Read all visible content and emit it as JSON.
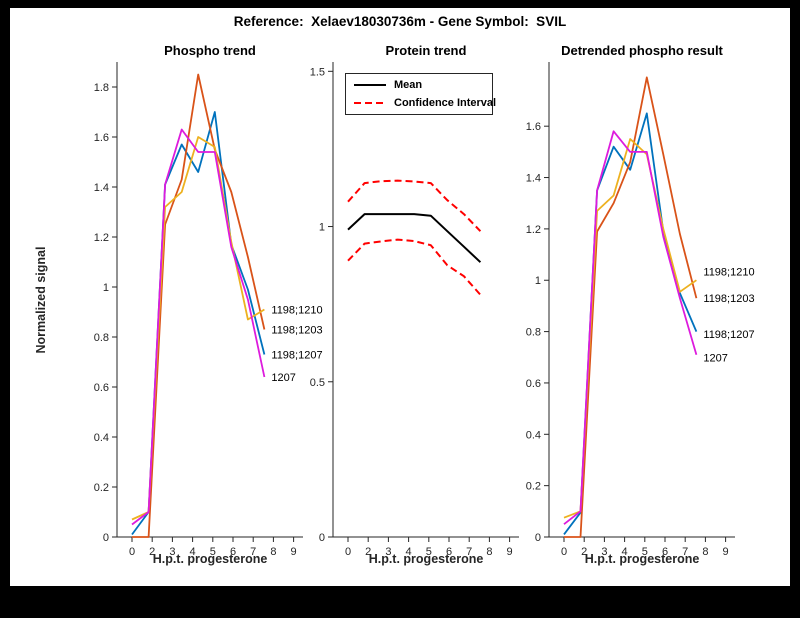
{
  "figure": {
    "title": "Reference:  Xelaev18030736m - Gene Symbol:  SVIL",
    "background": "#ffffff",
    "frame_color": "#000000",
    "axis_color": "#262626",
    "tick_label_color": "#262626"
  },
  "chart_data": [
    {
      "type": "line",
      "title": "Phospho trend",
      "xlabel": "H.p.t. progesterone",
      "ylabel": "Normalized signal",
      "x_tick_labels": [
        "0",
        "2",
        "3",
        "4",
        "5",
        "6",
        "7",
        "8",
        "9"
      ],
      "y_ticks": [
        0,
        0.2,
        0.4,
        0.6,
        0.8,
        1,
        1.2,
        1.4,
        1.6,
        1.8
      ],
      "y_tick_labels": [
        "0",
        "0.2",
        "0.4",
        "0.6",
        "0.8",
        "1",
        "1.2",
        "1.4",
        "1.6",
        "1.8"
      ],
      "ylim": [
        0,
        1.9
      ],
      "grid": false,
      "series": [
        {
          "name": "1198;1207",
          "color": "#0072BD",
          "dash": "none",
          "width": 1.8,
          "values": [
            0.01,
            0.1,
            1.41,
            1.57,
            1.46,
            1.7,
            1.17,
            0.99,
            0.73
          ]
        },
        {
          "name": "1198;1203",
          "color": "#D95319",
          "dash": "none",
          "width": 1.8,
          "values": [
            0.0,
            0.0,
            1.25,
            1.43,
            1.85,
            1.55,
            1.38,
            1.12,
            0.83
          ]
        },
        {
          "name": "1198;1210",
          "color": "#EDB120",
          "dash": "none",
          "width": 1.8,
          "values": [
            0.07,
            0.1,
            1.32,
            1.38,
            1.6,
            1.56,
            1.18,
            0.87,
            0.91
          ]
        },
        {
          "name": "1207",
          "color": "#DD1BDD",
          "dash": "none",
          "width": 1.8,
          "values": [
            0.05,
            0.1,
            1.41,
            1.63,
            1.54,
            1.54,
            1.16,
            0.95,
            0.64
          ]
        }
      ],
      "end_labels": [
        {
          "text": "1198;1210",
          "value": 0.91
        },
        {
          "text": "1198;1203",
          "value": 0.83
        },
        {
          "text": "1198;1207",
          "value": 0.73
        },
        {
          "text": "1207",
          "value": 0.64
        }
      ]
    },
    {
      "type": "line",
      "title": "Protein trend",
      "xlabel": "H.p.t. progesterone",
      "ylabel": "",
      "x_tick_labels": [
        "0",
        "2",
        "3",
        "4",
        "5",
        "6",
        "7",
        "8",
        "9"
      ],
      "y_ticks": [
        0,
        0.5,
        1,
        1.5
      ],
      "y_tick_labels": [
        "0",
        "0.5",
        "1",
        "1.5"
      ],
      "ylim": [
        0,
        1.53
      ],
      "grid": false,
      "legend": {
        "position": "top-left",
        "entries": [
          {
            "label": "Mean",
            "color": "#000000",
            "dash": "none"
          },
          {
            "label": "Confidence Interval",
            "color": "#FF0000",
            "dash": "7 4"
          }
        ]
      },
      "series": [
        {
          "name": "Mean",
          "color": "#000000",
          "dash": "none",
          "width": 2,
          "values": [
            0.99,
            1.04,
            1.04,
            1.04,
            1.04,
            1.035,
            0.985,
            0.935,
            0.885
          ]
        },
        {
          "name": "Confidence Interval upper",
          "color": "#FF0000",
          "dash": "7 4",
          "width": 2,
          "values": [
            1.08,
            1.14,
            1.146,
            1.148,
            1.145,
            1.14,
            1.085,
            1.04,
            0.985
          ]
        },
        {
          "name": "Confidence Interval lower",
          "color": "#FF0000",
          "dash": "7 4",
          "width": 2,
          "values": [
            0.89,
            0.945,
            0.952,
            0.958,
            0.953,
            0.94,
            0.875,
            0.84,
            0.78
          ]
        }
      ],
      "end_labels": []
    },
    {
      "type": "line",
      "title": "Detrended phospho result",
      "xlabel": "H.p.t. progesterone",
      "ylabel": "",
      "x_tick_labels": [
        "0",
        "2",
        "3",
        "4",
        "5",
        "6",
        "7",
        "8",
        "9"
      ],
      "y_ticks": [
        0,
        0.2,
        0.4,
        0.6,
        0.8,
        1,
        1.2,
        1.4,
        1.6
      ],
      "y_tick_labels": [
        "0",
        "0.2",
        "0.4",
        "0.6",
        "0.8",
        "1",
        "1.2",
        "1.4",
        "1.6"
      ],
      "ylim": [
        0,
        1.85
      ],
      "grid": false,
      "series": [
        {
          "name": "1198;1207",
          "color": "#0072BD",
          "dash": "none",
          "width": 1.8,
          "values": [
            0.01,
            0.095,
            1.35,
            1.52,
            1.43,
            1.65,
            1.19,
            0.95,
            0.8
          ]
        },
        {
          "name": "1198;1203",
          "color": "#D95319",
          "dash": "none",
          "width": 1.8,
          "values": [
            0.0,
            0.0,
            1.19,
            1.3,
            1.46,
            1.79,
            1.49,
            1.18,
            0.93
          ]
        },
        {
          "name": "1198;1210",
          "color": "#EDB120",
          "dash": "none",
          "width": 1.8,
          "values": [
            0.075,
            0.1,
            1.27,
            1.33,
            1.55,
            1.49,
            1.2,
            0.955,
            1.0
          ]
        },
        {
          "name": "1207",
          "color": "#DD1BDD",
          "dash": "none",
          "width": 1.8,
          "values": [
            0.05,
            0.1,
            1.35,
            1.58,
            1.5,
            1.5,
            1.17,
            0.93,
            0.71
          ]
        }
      ],
      "end_labels": [
        {
          "text": "1198;1210",
          "value": 1.035
        },
        {
          "text": "1198;1203",
          "value": 0.93
        },
        {
          "text": "1198;1207",
          "value": 0.79
        },
        {
          "text": "1207",
          "value": 0.7
        }
      ]
    }
  ]
}
